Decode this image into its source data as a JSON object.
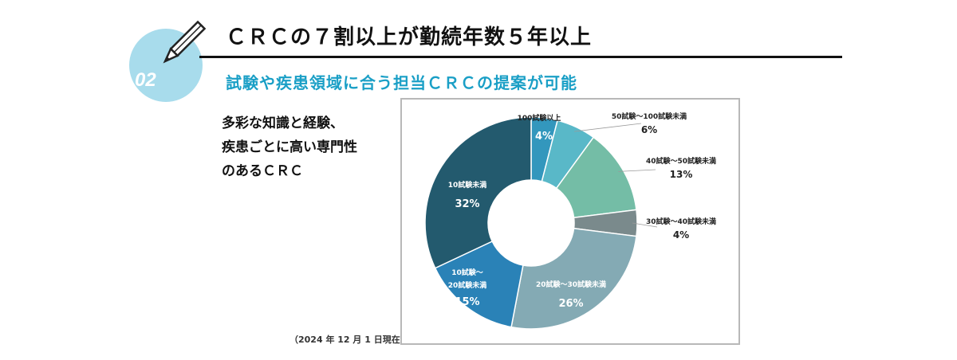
{
  "header": {
    "number": "02",
    "title": "ＣＲＣの７割以上が勤続年数５年以上",
    "subtitle": "試験や疾患領域に合う担当ＣＲＣの提案が可能"
  },
  "description": {
    "lines": [
      "多彩な知識と経験、",
      "疾患ごとに高い専門性",
      "のあるＣＲＣ"
    ]
  },
  "date_note": "（2024 年 12 月 1 日現在）",
  "colors": {
    "accent": "#1a9fc6",
    "badge": "#a8dcec"
  },
  "chart_data": {
    "type": "pie",
    "donut": true,
    "title": "",
    "slices": [
      {
        "label": "100試験以上",
        "value": 4,
        "value_label": "4%",
        "color": "#3397bd"
      },
      {
        "label": "50試験～100試験未満",
        "value": 6,
        "value_label": "6%",
        "color": "#59b8c8"
      },
      {
        "label": "40試験～50試験未満",
        "value": 13,
        "value_label": "13%",
        "color": "#74bda6"
      },
      {
        "label": "30試験～40試験未満",
        "value": 4,
        "value_label": "4%",
        "color": "#7a8a8c"
      },
      {
        "label": "20試験～30試験未満",
        "value": 26,
        "value_label": "26%",
        "color": "#84aab4"
      },
      {
        "label": "10試験～20試験未満",
        "value": 15,
        "value_label": "15%",
        "color": "#2a82b7"
      },
      {
        "label": "10試験未満",
        "value": 32,
        "value_label": "32%",
        "color": "#235a6e"
      }
    ]
  }
}
